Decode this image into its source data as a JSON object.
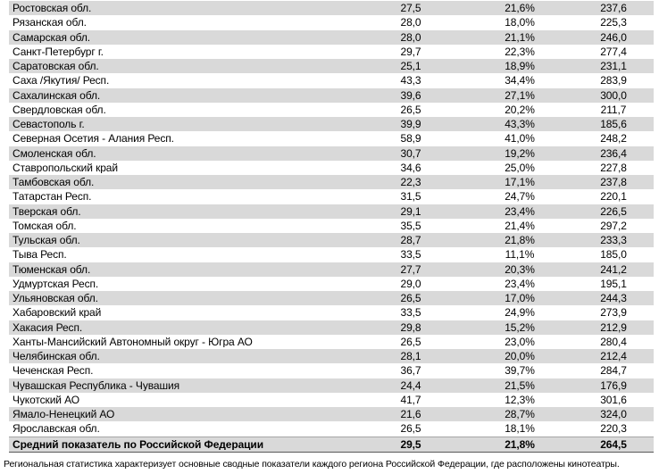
{
  "colors": {
    "row_band": "#d9d9d9",
    "total_border_top": "#a6a6a6",
    "total_border_bottom": "#595959"
  },
  "table": {
    "description": "regional-cinema-statistics-table",
    "rows": [
      {
        "region": "Ростовская обл.",
        "v1": "27,5",
        "pct": "21,6%",
        "v2": "237,6"
      },
      {
        "region": "Рязанская обл.",
        "v1": "28,0",
        "pct": "18,0%",
        "v2": "225,3"
      },
      {
        "region": "Самарская обл.",
        "v1": "28,0",
        "pct": "21,1%",
        "v2": "246,0"
      },
      {
        "region": "Санкт-Петербург г.",
        "v1": "29,7",
        "pct": "22,3%",
        "v2": "277,4"
      },
      {
        "region": "Саратовская обл.",
        "v1": "25,1",
        "pct": "18,9%",
        "v2": "231,1"
      },
      {
        "region": "Саха /Якутия/ Респ.",
        "v1": "43,3",
        "pct": "34,4%",
        "v2": "283,9"
      },
      {
        "region": "Сахалинская обл.",
        "v1": "39,6",
        "pct": "27,1%",
        "v2": "300,0"
      },
      {
        "region": "Свердловская обл.",
        "v1": "26,5",
        "pct": "20,2%",
        "v2": "211,7"
      },
      {
        "region": "Севастополь г.",
        "v1": "39,9",
        "pct": "43,3%",
        "v2": "185,6"
      },
      {
        "region": "Северная Осетия - Алания Респ.",
        "v1": "58,9",
        "pct": "41,0%",
        "v2": "248,2"
      },
      {
        "region": "Смоленская обл.",
        "v1": "30,7",
        "pct": "19,2%",
        "v2": "236,4"
      },
      {
        "region": "Ставропольский край",
        "v1": "34,6",
        "pct": "25,0%",
        "v2": "227,8"
      },
      {
        "region": "Тамбовская обл.",
        "v1": "22,3",
        "pct": "17,1%",
        "v2": "237,8"
      },
      {
        "region": "Татарстан Респ.",
        "v1": "31,5",
        "pct": "24,7%",
        "v2": "220,1"
      },
      {
        "region": "Тверская обл.",
        "v1": "29,1",
        "pct": "23,4%",
        "v2": "226,5"
      },
      {
        "region": "Томская обл.",
        "v1": "35,5",
        "pct": "21,4%",
        "v2": "297,2"
      },
      {
        "region": "Тульская обл.",
        "v1": "28,7",
        "pct": "21,8%",
        "v2": "233,3"
      },
      {
        "region": "Тыва Респ.",
        "v1": "33,5",
        "pct": "11,1%",
        "v2": "185,0"
      },
      {
        "region": "Тюменская обл.",
        "v1": "27,7",
        "pct": "20,3%",
        "v2": "241,2"
      },
      {
        "region": "Удмуртская Респ.",
        "v1": "29,0",
        "pct": "23,4%",
        "v2": "195,1"
      },
      {
        "region": "Ульяновская обл.",
        "v1": "26,5",
        "pct": "17,0%",
        "v2": "244,3"
      },
      {
        "region": "Хабаровский край",
        "v1": "33,5",
        "pct": "24,9%",
        "v2": "273,9"
      },
      {
        "region": "Хакасия Респ.",
        "v1": "29,8",
        "pct": "15,2%",
        "v2": "212,9"
      },
      {
        "region": "Ханты-Мансийский Автономный округ - Югра АО",
        "v1": "26,5",
        "pct": "23,0%",
        "v2": "280,4"
      },
      {
        "region": "Челябинская обл.",
        "v1": "28,1",
        "pct": "20,0%",
        "v2": "212,4"
      },
      {
        "region": "Чеченская Респ.",
        "v1": "36,7",
        "pct": "39,7%",
        "v2": "284,7"
      },
      {
        "region": "Чувашская Республика - Чувашия",
        "v1": "24,4",
        "pct": "21,5%",
        "v2": "176,9"
      },
      {
        "region": "Чукотский АО",
        "v1": "41,7",
        "pct": "12,3%",
        "v2": "301,6"
      },
      {
        "region": "Ямало-Ненецкий АО",
        "v1": "21,6",
        "pct": "28,7%",
        "v2": "324,0"
      },
      {
        "region": "Ярославская обл.",
        "v1": "26,5",
        "pct": "18,1%",
        "v2": "220,3"
      }
    ],
    "total": {
      "region": "Средний показатель по Российской Федерации",
      "v1": "29,5",
      "pct": "21,8%",
      "v2": "264,5"
    }
  },
  "footer": {
    "text": "Региональная статистика характеризует основные сводные показатели каждого региона Российской Федерации, где расположены кинотеатры."
  }
}
